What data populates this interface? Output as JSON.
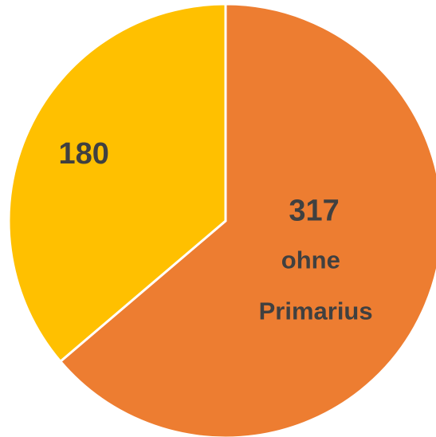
{
  "chart_data": {
    "type": "pie",
    "categories": [
      "ohne Primarius",
      null
    ],
    "values": [
      317,
      180
    ],
    "colors": [
      "#ED7D31",
      "#FFC000"
    ]
  }
}
